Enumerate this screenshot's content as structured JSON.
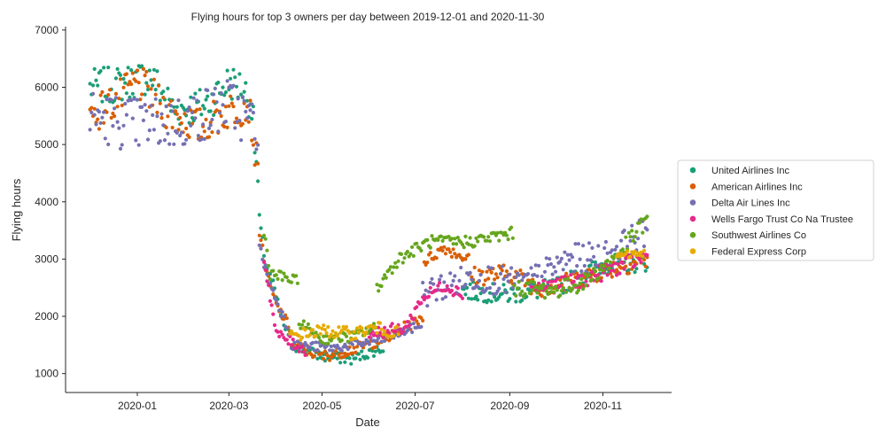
{
  "chart_data": {
    "type": "scatter",
    "title": "Flying hours for top 3 owners per day between 2019-12-01 and 2020-11-30",
    "xlabel": "Date",
    "ylabel": "Flying hours",
    "xlim": [
      "2019-11-15",
      "2020-12-16"
    ],
    "ylim": [
      670,
      7060
    ],
    "x_ticks": [
      "2020-01-01",
      "2020-03-01",
      "2020-05-01",
      "2020-07-01",
      "2020-09-01",
      "2020-11-01"
    ],
    "x_tick_labels": [
      "2020-01",
      "2020-03",
      "2020-05",
      "2020-07",
      "2020-09",
      "2020-11"
    ],
    "y_ticks": [
      1000,
      2000,
      3000,
      4000,
      5000,
      6000,
      7000
    ],
    "grid": false,
    "legend_position": "right",
    "series": [
      {
        "name": "United Airlines Inc",
        "color": "#1b9e77",
        "segments": [
          {
            "start": "2019-12-01",
            "end": "2020-03-20",
            "anchors": [
              [
                "2019-12-01",
                6000
              ],
              [
                "2019-12-20",
                6050
              ],
              [
                "2020-01-10",
                6200
              ],
              [
                "2020-01-25",
                5600
              ],
              [
                "2020-02-15",
                5700
              ],
              [
                "2020-03-01",
                6100
              ],
              [
                "2020-03-10",
                6000
              ],
              [
                "2020-03-16",
                5700
              ],
              [
                "2020-03-18",
                5000
              ],
              [
                "2020-03-20",
                4300
              ]
            ],
            "spread": 320
          },
          {
            "start": "2020-03-21",
            "end": "2020-04-10",
            "anchors": [
              [
                "2020-03-21",
                3700
              ],
              [
                "2020-03-25",
                2900
              ],
              [
                "2020-03-30",
                2550
              ],
              [
                "2020-04-05",
                1900
              ],
              [
                "2020-04-10",
                1650
              ]
            ],
            "spread": 90
          },
          {
            "start": "2020-04-11",
            "end": "2020-06-10",
            "anchors": [
              [
                "2020-04-11",
                1500
              ],
              [
                "2020-05-01",
                1300
              ],
              [
                "2020-05-20",
                1250
              ],
              [
                "2020-06-10",
                1450
              ]
            ],
            "spread": 90
          },
          {
            "start": "2020-08-01",
            "end": "2020-11-30",
            "anchors": [
              [
                "2020-08-01",
                2450
              ],
              [
                "2020-09-01",
                2380
              ],
              [
                "2020-10-01",
                2500
              ],
              [
                "2020-11-01",
                2900
              ],
              [
                "2020-11-30",
                2950
              ]
            ],
            "spread": 170
          }
        ]
      },
      {
        "name": "American Airlines Inc",
        "color": "#d95f02",
        "segments": [
          {
            "start": "2019-12-01",
            "end": "2020-03-20",
            "anchors": [
              [
                "2019-12-01",
                5500
              ],
              [
                "2019-12-20",
                5800
              ],
              [
                "2020-01-01",
                6100
              ],
              [
                "2020-01-20",
                5600
              ],
              [
                "2020-02-10",
                5300
              ],
              [
                "2020-03-01",
                5600
              ],
              [
                "2020-03-14",
                5700
              ],
              [
                "2020-03-20",
                4500
              ]
            ],
            "spread": 330
          },
          {
            "start": "2020-03-21",
            "end": "2020-04-10",
            "anchors": [
              [
                "2020-03-21",
                3500
              ],
              [
                "2020-03-26",
                2700
              ],
              [
                "2020-04-01",
                2200
              ],
              [
                "2020-04-10",
                1800
              ]
            ],
            "spread": 90
          },
          {
            "start": "2020-04-11",
            "end": "2020-07-06",
            "anchors": [
              [
                "2020-04-11",
                1500
              ],
              [
                "2020-05-01",
                1300
              ],
              [
                "2020-05-25",
                1450
              ],
              [
                "2020-06-15",
                1650
              ],
              [
                "2020-07-06",
                2000
              ]
            ],
            "spread": 100
          },
          {
            "start": "2020-07-07",
            "end": "2020-08-05",
            "anchors": [
              [
                "2020-07-07",
                2950
              ],
              [
                "2020-07-20",
                3200
              ],
              [
                "2020-08-05",
                3000
              ]
            ],
            "spread": 100
          },
          {
            "start": "2020-08-06",
            "end": "2020-11-30",
            "anchors": [
              [
                "2020-08-06",
                2700
              ],
              [
                "2020-09-01",
                2750
              ],
              [
                "2020-09-20",
                2500
              ],
              [
                "2020-10-10",
                2600
              ],
              [
                "2020-11-01",
                2800
              ],
              [
                "2020-11-30",
                3000
              ]
            ],
            "spread": 170
          }
        ]
      },
      {
        "name": "Delta Air Lines Inc",
        "color": "#7570b3",
        "segments": [
          {
            "start": "2019-12-01",
            "end": "2020-03-20",
            "anchors": [
              [
                "2019-12-01",
                5500
              ],
              [
                "2020-01-01",
                5350
              ],
              [
                "2020-02-01",
                5400
              ],
              [
                "2020-03-01",
                5700
              ],
              [
                "2020-03-20",
                5300
              ]
            ],
            "spread": 480
          },
          {
            "start": "2020-03-21",
            "end": "2020-04-10",
            "anchors": [
              [
                "2020-03-21",
                3200
              ],
              [
                "2020-03-28",
                2550
              ],
              [
                "2020-04-10",
                1700
              ]
            ],
            "spread": 90
          },
          {
            "start": "2020-04-11",
            "end": "2020-07-05",
            "anchors": [
              [
                "2020-04-11",
                1500
              ],
              [
                "2020-05-10",
                1450
              ],
              [
                "2020-06-10",
                1600
              ],
              [
                "2020-07-05",
                1850
              ]
            ],
            "spread": 80
          },
          {
            "start": "2020-07-06",
            "end": "2020-11-30",
            "anchors": [
              [
                "2020-07-06",
                2400
              ],
              [
                "2020-08-10",
                2700
              ],
              [
                "2020-09-10",
                2550
              ],
              [
                "2020-10-10",
                3000
              ],
              [
                "2020-11-01",
                3050
              ],
              [
                "2020-11-30",
                3500
              ]
            ],
            "spread": 260
          }
        ]
      },
      {
        "name": "Wells Fargo Trust Co Na Trustee",
        "color": "#e7298a",
        "segments": [
          {
            "start": "2020-03-24",
            "end": "2020-04-20",
            "anchors": [
              [
                "2020-03-24",
                3000
              ],
              [
                "2020-04-01",
                1700
              ],
              [
                "2020-04-20",
                1400
              ]
            ],
            "spread": 90
          },
          {
            "start": "2020-06-01",
            "end": "2020-08-01",
            "anchors": [
              [
                "2020-06-01",
                1700
              ],
              [
                "2020-06-25",
                1800
              ],
              [
                "2020-07-05",
                2300
              ],
              [
                "2020-07-20",
                2550
              ],
              [
                "2020-08-01",
                2400
              ]
            ],
            "spread": 110
          },
          {
            "start": "2020-09-15",
            "end": "2020-11-30",
            "anchors": [
              [
                "2020-09-15",
                2500
              ],
              [
                "2020-10-15",
                2600
              ],
              [
                "2020-11-15",
                2900
              ],
              [
                "2020-11-30",
                3050
              ]
            ],
            "spread": 140
          }
        ]
      },
      {
        "name": "Southwest Airlines Co",
        "color": "#66a61e",
        "segments": [
          {
            "start": "2020-03-24",
            "end": "2020-04-15",
            "anchors": [
              [
                "2020-03-24",
                3500
              ],
              [
                "2020-03-28",
                2750
              ],
              [
                "2020-04-15",
                2600
              ]
            ],
            "spread": 100
          },
          {
            "start": "2020-04-16",
            "end": "2020-06-05",
            "anchors": [
              [
                "2020-04-16",
                1900
              ],
              [
                "2020-05-01",
                1600
              ],
              [
                "2020-05-20",
                1650
              ],
              [
                "2020-06-05",
                1800
              ]
            ],
            "spread": 90
          },
          {
            "start": "2020-06-06",
            "end": "2020-09-03",
            "anchors": [
              [
                "2020-06-06",
                2500
              ],
              [
                "2020-06-20",
                3000
              ],
              [
                "2020-07-10",
                3300
              ],
              [
                "2020-08-05",
                3300
              ],
              [
                "2020-09-03",
                3450
              ]
            ],
            "spread": 110
          },
          {
            "start": "2020-09-04",
            "end": "2020-11-30",
            "anchors": [
              [
                "2020-09-04",
                2500
              ],
              [
                "2020-10-01",
                2450
              ],
              [
                "2020-10-20",
                2600
              ],
              [
                "2020-11-10",
                3050
              ],
              [
                "2020-11-30",
                3700
              ]
            ],
            "spread": 150
          }
        ]
      },
      {
        "name": "Federal Express Corp",
        "color": "#e6ab02",
        "segments": [
          {
            "start": "2020-04-10",
            "end": "2020-06-20",
            "anchors": [
              [
                "2020-04-10",
                1650
              ],
              [
                "2020-05-01",
                1750
              ],
              [
                "2020-05-20",
                1700
              ],
              [
                "2020-06-05",
                1800
              ],
              [
                "2020-06-20",
                1700
              ]
            ],
            "spread": 110
          },
          {
            "start": "2020-11-10",
            "end": "2020-11-28",
            "anchors": [
              [
                "2020-11-10",
                3050
              ],
              [
                "2020-11-28",
                3100
              ]
            ],
            "spread": 70
          }
        ]
      }
    ]
  }
}
